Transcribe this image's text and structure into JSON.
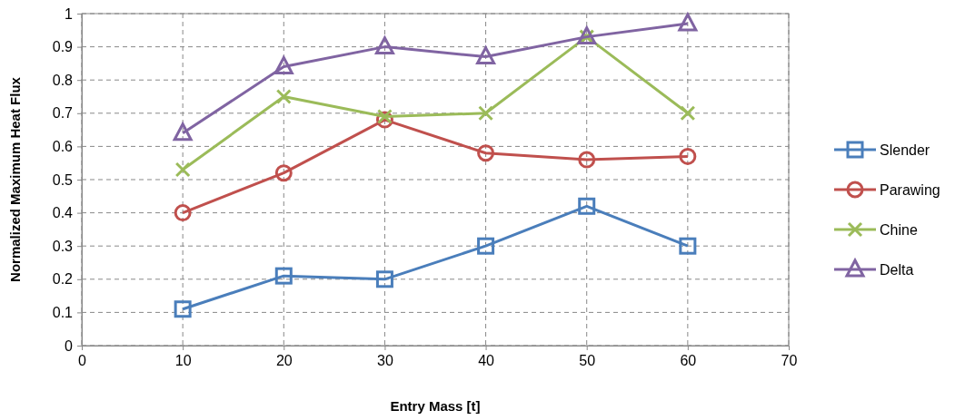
{
  "chart_data": {
    "type": "line",
    "xlabel": "Entry Mass [t]",
    "ylabel": "Normalized Maximum Heat Flux",
    "x": [
      10,
      20,
      30,
      40,
      50,
      60
    ],
    "xlim": [
      0,
      70
    ],
    "xticks": [
      0,
      10,
      20,
      30,
      40,
      50,
      60,
      70
    ],
    "ylim": [
      0,
      1
    ],
    "yticks": [
      0,
      0.1,
      0.2,
      0.3,
      0.4,
      0.5,
      0.6,
      0.7,
      0.8,
      0.9,
      1
    ],
    "grid": true,
    "legend": "right",
    "series": [
      {
        "name": "Slender",
        "color": "#4a7ebb",
        "marker": "square",
        "values": [
          0.11,
          0.21,
          0.2,
          0.3,
          0.42,
          0.3
        ]
      },
      {
        "name": "Parawing",
        "color": "#c0504d",
        "marker": "circle",
        "values": [
          0.4,
          0.52,
          0.68,
          0.58,
          0.56,
          0.57
        ]
      },
      {
        "name": "Chine",
        "color": "#9bbb59",
        "marker": "cross",
        "values": [
          0.53,
          0.75,
          0.69,
          0.7,
          0.93,
          0.7
        ]
      },
      {
        "name": "Delta",
        "color": "#8064a2",
        "marker": "triangle",
        "values": [
          0.64,
          0.84,
          0.9,
          0.87,
          0.93,
          0.97
        ]
      }
    ]
  }
}
